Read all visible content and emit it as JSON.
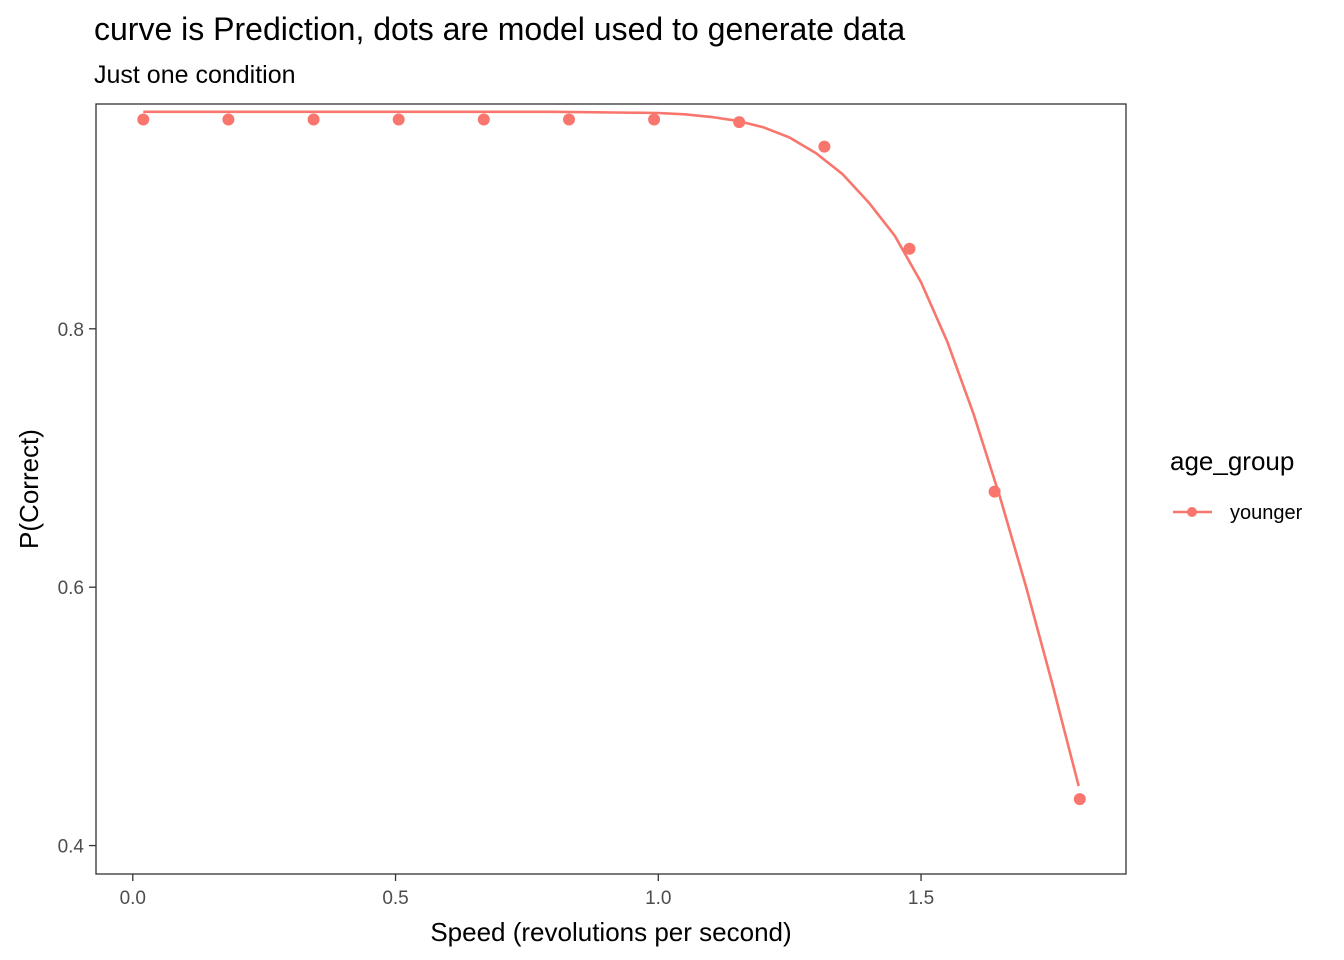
{
  "chart_data": {
    "type": "line",
    "title": "curve is Prediction, dots are model used to generate data",
    "subtitle": "Just one condition",
    "xlabel": "Speed (revolutions per second)",
    "ylabel": "P(Correct)",
    "xlim": [
      -0.07,
      1.89
    ],
    "ylim": [
      0.378,
      0.974
    ],
    "xticks": [
      0.0,
      0.5,
      1.0,
      1.5
    ],
    "xtick_labels": [
      "0.0",
      "0.5",
      "1.0",
      "1.5"
    ],
    "yticks": [
      0.4,
      0.6,
      0.8
    ],
    "ytick_labels": [
      "0.4",
      "0.6",
      "0.8"
    ],
    "grid": false,
    "legend": {
      "title": "age_group",
      "placement": "right",
      "entries": [
        "younger"
      ]
    },
    "series": [
      {
        "name": "younger",
        "color": "#F8766D",
        "curve": {
          "x": [
            0.02,
            0.2,
            0.4,
            0.6,
            0.8,
            1.0,
            1.05,
            1.1,
            1.15,
            1.2,
            1.25,
            1.3,
            1.35,
            1.4,
            1.45,
            1.5,
            1.55,
            1.6,
            1.65,
            1.7,
            1.75,
            1.8
          ],
          "y": [
            0.968,
            0.968,
            0.968,
            0.968,
            0.968,
            0.967,
            0.966,
            0.964,
            0.961,
            0.956,
            0.948,
            0.936,
            0.92,
            0.898,
            0.872,
            0.836,
            0.79,
            0.734,
            0.67,
            0.6,
            0.525,
            0.446
          ]
        },
        "points": {
          "x": [
            0.02,
            0.182,
            0.344,
            0.506,
            0.668,
            0.83,
            0.992,
            1.154,
            1.316,
            1.478,
            1.64,
            1.802
          ],
          "y": [
            0.962,
            0.962,
            0.962,
            0.962,
            0.962,
            0.962,
            0.962,
            0.96,
            0.941,
            0.862,
            0.674,
            0.436
          ]
        }
      }
    ]
  }
}
